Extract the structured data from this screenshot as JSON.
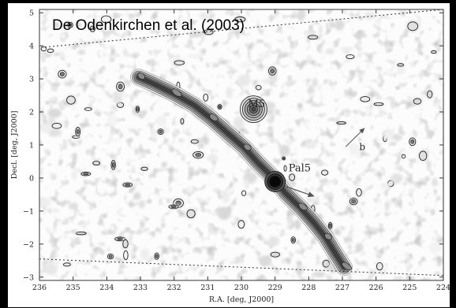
{
  "chart_data": {
    "type": "heatmap",
    "title": "De Odenkirchen et al. (2003)",
    "xlabel": "R.A.  [deg, J2000]",
    "ylabel": "Decl.  [deg, J2000]",
    "xlim": [
      236,
      224
    ],
    "ylim": [
      -3.1,
      5.1
    ],
    "x_ticks": [
      "236",
      "235",
      "234",
      "233",
      "232",
      "231",
      "230",
      "229",
      "228",
      "227",
      "226",
      "225",
      "224"
    ],
    "y_ticks": [
      "5",
      "4",
      "3",
      "2",
      "1",
      "0",
      "−1",
      "−2",
      "−3"
    ],
    "grid": false,
    "annotations": [
      {
        "text": "M5",
        "x": 229.8,
        "y": 2.15
      },
      {
        "text": "Pal5",
        "x": 228.6,
        "y": 0.2
      },
      {
        "text": "b",
        "x": 226.5,
        "y": 0.85
      }
    ],
    "footprint": {
      "upper": [
        [
          235.95,
          3.95
        ],
        [
          224.0,
          5.1
        ]
      ],
      "lower": [
        [
          236.0,
          -2.45
        ],
        [
          224.0,
          -2.95
        ]
      ]
    },
    "stream": [
      [
        233.05,
        3.05
      ],
      [
        232.6,
        2.85
      ],
      [
        232.0,
        2.55
      ],
      [
        231.4,
        2.2
      ],
      [
        230.9,
        1.8
      ],
      [
        230.4,
        1.35
      ],
      [
        229.9,
        0.9
      ],
      [
        229.5,
        0.45
      ],
      [
        229.05,
        0.0
      ],
      [
        228.7,
        -0.45
      ],
      [
        228.25,
        -0.9
      ],
      [
        227.85,
        -1.35
      ],
      [
        227.5,
        -1.8
      ],
      [
        227.2,
        -2.3
      ],
      [
        226.95,
        -2.7
      ]
    ],
    "clusters": [
      {
        "name": "Pal5",
        "ra": 229.0,
        "dec": -0.11
      },
      {
        "name": "M5",
        "ra": 229.64,
        "dec": 2.08
      }
    ],
    "colors": {
      "background": "#000000",
      "field": "#fdfdfd",
      "contour_line": "#1a1a1a",
      "stream_fill": "#7a7a7a"
    }
  }
}
